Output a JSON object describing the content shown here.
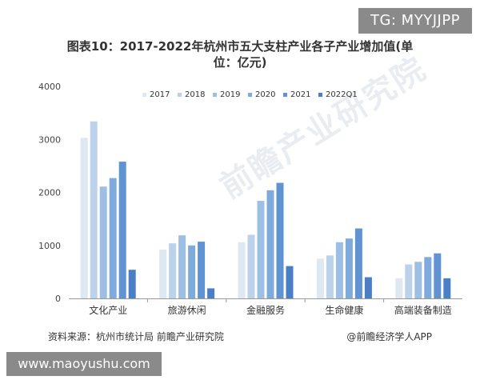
{
  "watermark_badge": "TG: MYYJJPP",
  "site_badge": "www.maoyushu.com",
  "source": "资料来源：杭州市统计局 前瞻产业研究院",
  "credit": "@前瞻经济学人APP",
  "watermark_text": "前瞻产业研究院",
  "chart_data": {
    "type": "bar",
    "title_line1": "图表10：2017-2022年杭州市五大支柱产业各子产业增加值(单",
    "title_line2": "位：亿元)",
    "categories": [
      "文化产业",
      "旅游休闲",
      "金融服务",
      "生命健康",
      "高端装备制造"
    ],
    "series": [
      {
        "name": "2017",
        "color": "#dde8f3",
        "values": [
          3030,
          920,
          1060,
          750,
          380
        ]
      },
      {
        "name": "2018",
        "color": "#bcd2ea",
        "values": [
          3340,
          1040,
          1200,
          810,
          640
        ]
      },
      {
        "name": "2019",
        "color": "#9dbfe3",
        "values": [
          2110,
          1190,
          1840,
          1060,
          690
        ]
      },
      {
        "name": "2020",
        "color": "#7fabdc",
        "values": [
          2270,
          1000,
          2040,
          1130,
          780
        ]
      },
      {
        "name": "2021",
        "color": "#5f93d2",
        "values": [
          2580,
          1070,
          2180,
          1320,
          850
        ]
      },
      {
        "name": "2022Q1",
        "color": "#4a7fc8",
        "values": [
          540,
          190,
          610,
          400,
          380
        ]
      }
    ],
    "legend_labels": [
      "2017",
      "2018",
      "2019",
      "2020",
      "2021",
      "2022Q1"
    ],
    "yticks": [
      0,
      1000,
      2000,
      3000,
      4000
    ],
    "ylim": [
      0,
      4000
    ],
    "legend_position": "top",
    "grid": false
  }
}
